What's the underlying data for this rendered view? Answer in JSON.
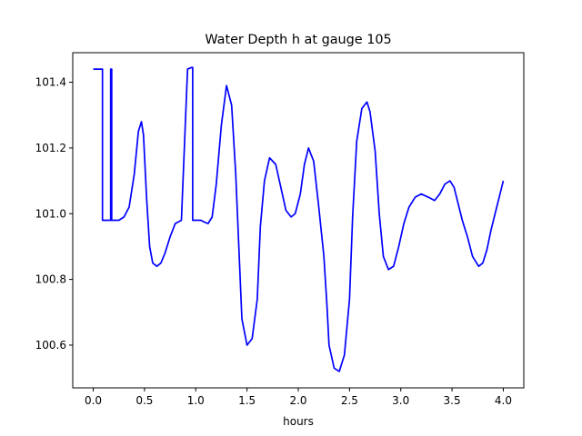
{
  "chart_data": {
    "type": "line",
    "title": "Water Depth h at gauge 105",
    "xlabel": "hours",
    "ylabel": "",
    "xlim": [
      -0.2,
      4.2
    ],
    "ylim": [
      100.47,
      101.49
    ],
    "grid": false,
    "x_ticks": [
      "0.0",
      "0.5",
      "1.0",
      "1.5",
      "2.0",
      "2.5",
      "3.0",
      "3.5",
      "4.0"
    ],
    "y_ticks": [
      "100.6",
      "100.8",
      "101.0",
      "101.2",
      "101.4"
    ],
    "series": [
      {
        "color": "#0000ff",
        "x": [
          0.0,
          0.09,
          0.09,
          0.17,
          0.17,
          0.18,
          0.18,
          0.2,
          0.25,
          0.3,
          0.35,
          0.4,
          0.44,
          0.47,
          0.49,
          0.52,
          0.55,
          0.58,
          0.62,
          0.66,
          0.7,
          0.75,
          0.8,
          0.86,
          0.92,
          0.96,
          0.97,
          0.97,
          1.05,
          1.05,
          1.08,
          1.12,
          1.16,
          1.2,
          1.25,
          1.3,
          1.35,
          1.39,
          1.42,
          1.45,
          1.5,
          1.55,
          1.6,
          1.63,
          1.67,
          1.72,
          1.78,
          1.83,
          1.88,
          1.93,
          1.97,
          2.02,
          2.06,
          2.1,
          2.15,
          2.2,
          2.25,
          2.28,
          2.3,
          2.35,
          2.4,
          2.45,
          2.5,
          2.53,
          2.57,
          2.62,
          2.67,
          2.7,
          2.75,
          2.79,
          2.83,
          2.88,
          2.93,
          2.98,
          3.03,
          3.08,
          3.14,
          3.2,
          3.27,
          3.33,
          3.38,
          3.43,
          3.48,
          3.52,
          3.56,
          3.6,
          3.65,
          3.7,
          3.76,
          3.8,
          3.84,
          3.88,
          3.92,
          3.96,
          4.0
        ],
        "y": [
          101.44,
          101.44,
          100.98,
          100.98,
          101.44,
          101.44,
          100.98,
          100.98,
          100.98,
          100.99,
          101.02,
          101.12,
          101.25,
          101.28,
          101.24,
          101.05,
          100.9,
          100.85,
          100.84,
          100.85,
          100.88,
          100.93,
          100.97,
          100.98,
          101.44,
          101.445,
          101.445,
          100.98,
          100.98,
          100.98,
          100.975,
          100.97,
          100.99,
          101.09,
          101.27,
          101.39,
          101.33,
          101.12,
          100.9,
          100.68,
          100.6,
          100.62,
          100.74,
          100.96,
          101.1,
          101.17,
          101.15,
          101.08,
          101.01,
          100.99,
          101.0,
          101.06,
          101.15,
          101.2,
          101.16,
          101.02,
          100.87,
          100.72,
          100.6,
          100.53,
          100.52,
          100.57,
          100.74,
          100.99,
          101.22,
          101.32,
          101.34,
          101.31,
          101.19,
          101.0,
          100.87,
          100.83,
          100.84,
          100.9,
          100.97,
          101.02,
          101.05,
          101.06,
          101.05,
          101.04,
          101.06,
          101.09,
          101.1,
          101.08,
          101.03,
          100.98,
          100.93,
          100.87,
          100.84,
          100.85,
          100.89,
          100.95,
          101.0,
          101.05,
          101.1
        ]
      }
    ]
  }
}
